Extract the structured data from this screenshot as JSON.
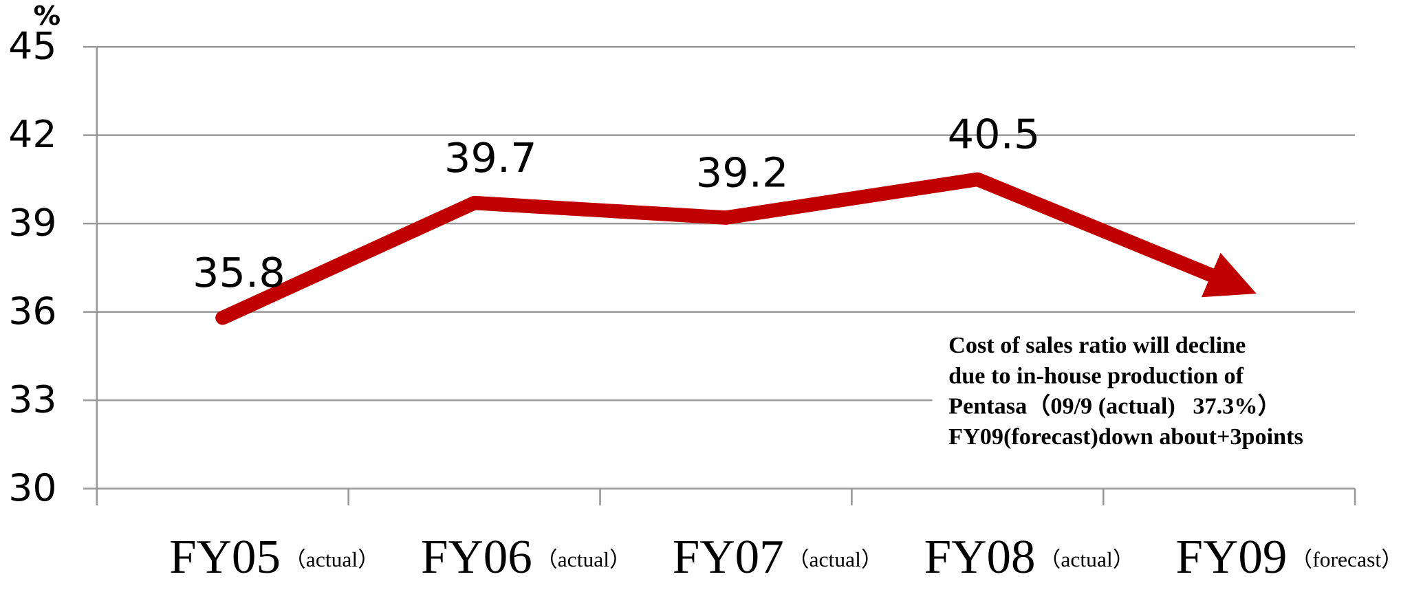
{
  "chart_data": {
    "type": "line",
    "y_unit": "%",
    "categories": [
      "FY05",
      "FY06",
      "FY07",
      "FY08",
      "FY09"
    ],
    "category_notes": [
      "（actual）",
      "（actual）",
      "（actual）",
      "（actual）",
      "（forecast）"
    ],
    "series": [
      {
        "color": "#c00000",
        "values": [
          35.8,
          39.7,
          39.2,
          40.5,
          37.0
        ],
        "value_labels": [
          "35.8",
          "39.7",
          "39.2",
          "40.5",
          null
        ]
      }
    ],
    "ylim": [
      30,
      45
    ],
    "yticks": [
      30,
      33,
      36,
      39,
      42,
      45
    ],
    "grid": true,
    "annotation": [
      "Cost of sales ratio will decline",
      "due to in-house production of",
      "Pentasa（09/9 (actual)   37.3%）",
      "FY09(forecast)down about+3points"
    ]
  }
}
